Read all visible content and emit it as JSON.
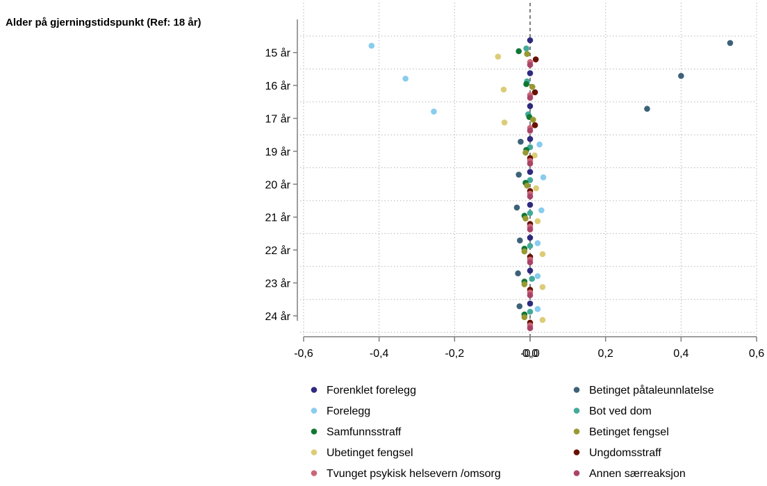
{
  "chart_data": {
    "type": "scatter",
    "orientation": "horizontal",
    "ytitle": "Alder på gjerningstidspunkt",
    "ref_label": "(Ref: 18 år)",
    "categories": [
      "15 år",
      "16 år",
      "17 år",
      "19 år",
      "20 år",
      "21 år",
      "22 år",
      "23 år",
      "24 år"
    ],
    "xlim": [
      -0.6,
      0.6
    ],
    "xticks": [
      "-0,6",
      "-0,4",
      "-0,2",
      "-0,0",
      "0,0",
      "0,2",
      "0,4",
      "0,6"
    ],
    "grid": true,
    "reference_line": 0,
    "legend_position": "bottom",
    "series": [
      {
        "name": "Forenklet forelegg",
        "color": "#2e2a7e",
        "values": [
          0.0,
          0.0,
          0.0,
          0.0,
          0.0,
          0.0,
          0.0,
          0.0,
          0.0
        ]
      },
      {
        "name": "Betinget påtaleunnlatelse",
        "color": "#3d6278",
        "values": [
          0.53,
          0.4,
          0.31,
          -0.025,
          -0.03,
          -0.035,
          -0.027,
          -0.032,
          -0.028
        ]
      },
      {
        "name": "Forelegg",
        "color": "#88ccee",
        "values": [
          -0.42,
          -0.33,
          -0.255,
          0.025,
          0.035,
          0.03,
          0.02,
          0.02,
          0.02
        ]
      },
      {
        "name": "Bot ved dom",
        "color": "#44aa99",
        "values": [
          -0.01,
          -0.008,
          -0.005,
          0.0,
          0.0,
          0.0,
          0.0,
          0.005,
          0.0
        ]
      },
      {
        "name": "Samfunnsstraff",
        "color": "#117733",
        "values": [
          -0.03,
          -0.01,
          -0.002,
          -0.01,
          -0.012,
          -0.015,
          -0.015,
          -0.015,
          -0.015
        ]
      },
      {
        "name": "Betinget fengsel",
        "color": "#999933",
        "values": [
          -0.008,
          0.006,
          0.008,
          -0.012,
          -0.008,
          -0.012,
          -0.015,
          -0.015,
          -0.015
        ]
      },
      {
        "name": "Ubetinget fengsel",
        "color": "#ddcc77",
        "values": [
          -0.085,
          -0.07,
          -0.068,
          0.012,
          0.016,
          0.02,
          0.033,
          0.033,
          0.033
        ]
      },
      {
        "name": "Ungdomsstraff",
        "color": "#661100",
        "values": [
          0.015,
          0.013,
          0.013,
          0.0,
          0.0,
          0.0,
          0.0,
          0.0,
          0.0
        ]
      },
      {
        "name": "Tvunget psykisk helsevern /omsorg",
        "color": "#cc6677",
        "values": [
          0.0,
          0.0,
          0.0,
          0.0,
          0.0,
          0.0,
          0.0,
          0.0,
          0.0
        ]
      },
      {
        "name": "Annen særreaksjon",
        "color": "#aa4466",
        "values": [
          0.0,
          0.0,
          0.0,
          0.0,
          0.0,
          0.0,
          0.0,
          0.0,
          0.0
        ]
      }
    ]
  }
}
